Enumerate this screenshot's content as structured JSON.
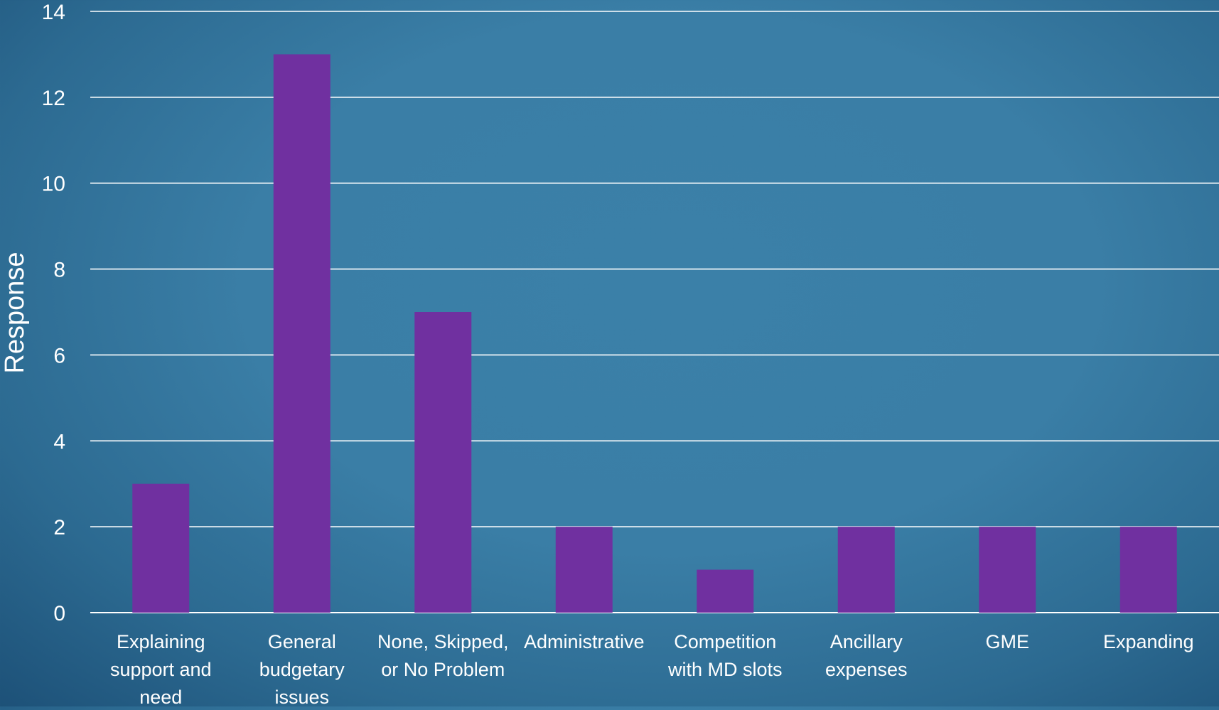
{
  "chart_data": {
    "type": "bar",
    "title": "",
    "xlabel": "",
    "ylabel": "Response",
    "ylim": [
      0,
      14
    ],
    "yticks": [
      0,
      2,
      4,
      6,
      8,
      10,
      12,
      14
    ],
    "grid": true,
    "legend": "none",
    "categories": [
      [
        "Explaining",
        "support and",
        "need"
      ],
      [
        "General",
        "budgetary",
        "issues"
      ],
      [
        "None, Skipped,",
        "or No Problem"
      ],
      [
        "Administrative"
      ],
      [
        "Competition",
        "with MD  slots"
      ],
      [
        "Ancillary",
        "expenses"
      ],
      [
        "GME"
      ],
      [
        "Expanding"
      ]
    ],
    "values": [
      3,
      13,
      7,
      2,
      1,
      2,
      2,
      2
    ],
    "colors": {
      "bar": "#7030a0",
      "grid": "#ffffff",
      "text": "#ffffff"
    }
  }
}
